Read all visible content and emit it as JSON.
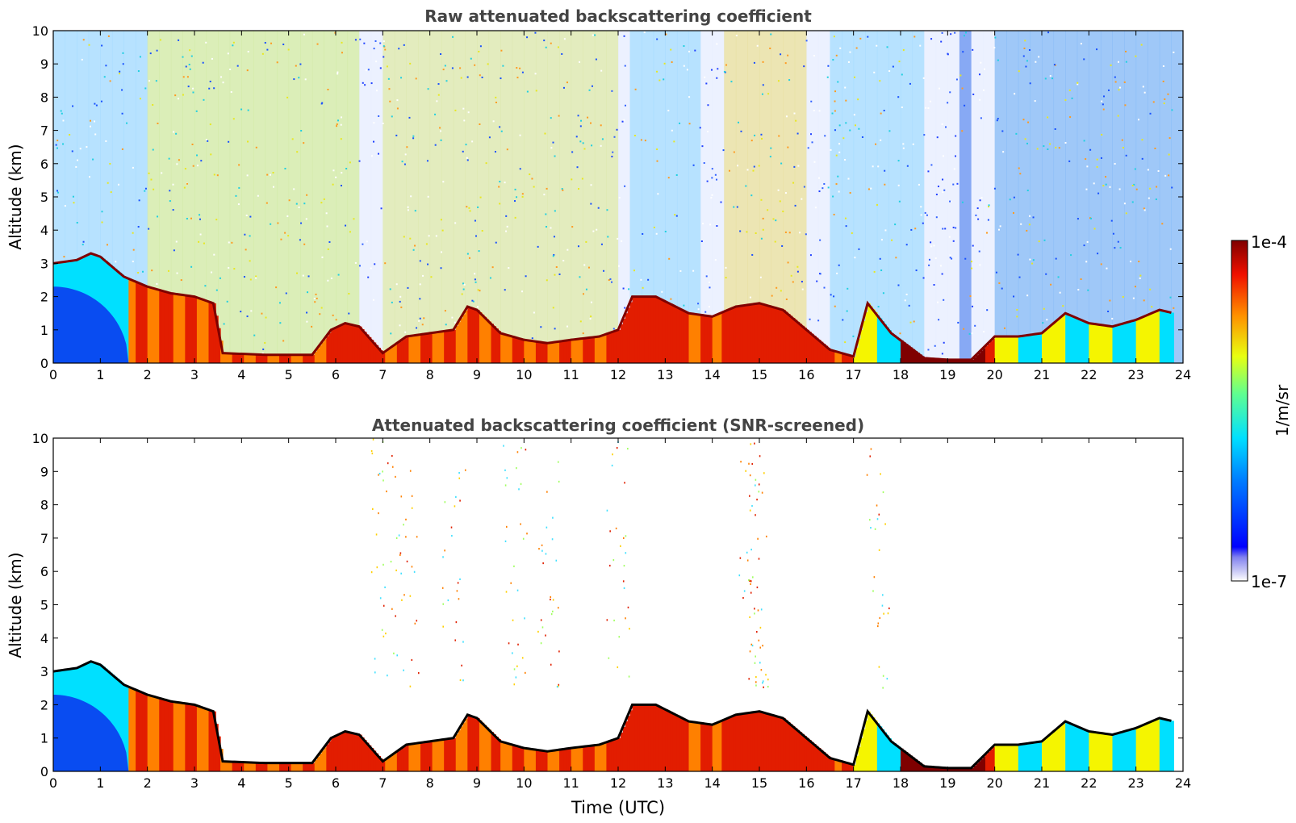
{
  "chart_data": [
    {
      "type": "heatmap",
      "title": "Raw attenuated backscattering coefficient",
      "xlabel": "",
      "ylabel": "Altitude (km)",
      "xlim": [
        0,
        24
      ],
      "ylim": [
        0,
        10
      ],
      "x_ticks": [
        "0",
        "1",
        "2",
        "3",
        "4",
        "5",
        "6",
        "7",
        "8",
        "9",
        "10",
        "11",
        "12",
        "13",
        "14",
        "15",
        "16",
        "17",
        "18",
        "19",
        "20",
        "21",
        "22",
        "23",
        "24"
      ],
      "y_ticks": [
        "0",
        "1",
        "2",
        "3",
        "4",
        "5",
        "6",
        "7",
        "8",
        "9",
        "10"
      ],
      "data_end_hour": 23.8,
      "boundary_layer_top_km": {
        "hours": [
          0,
          0.5,
          0.8,
          1.0,
          1.5,
          2.0,
          2.5,
          3.0,
          3.4,
          3.6,
          4.5,
          5.5,
          5.9,
          6.2,
          6.5,
          7.0,
          7.5,
          8.0,
          8.5,
          8.8,
          9.0,
          9.5,
          10.0,
          10.5,
          11.0,
          11.6,
          12.0,
          12.3,
          12.8,
          13.5,
          14.0,
          14.5,
          15.0,
          15.5,
          16.0,
          16.5,
          17.0,
          17.3,
          17.8,
          18.5,
          19.0,
          19.5,
          20.0,
          20.5,
          21.0,
          21.5,
          22.0,
          22.5,
          23.0,
          23.5,
          23.8
        ],
        "altitude": [
          3.0,
          3.1,
          3.3,
          3.2,
          2.6,
          2.3,
          2.1,
          2.0,
          1.8,
          0.3,
          0.25,
          0.25,
          1.0,
          1.2,
          1.1,
          0.3,
          0.8,
          0.9,
          1.0,
          1.7,
          1.6,
          0.9,
          0.7,
          0.6,
          0.7,
          0.8,
          1.0,
          2.0,
          2.0,
          1.5,
          1.4,
          1.7,
          1.8,
          1.6,
          1.0,
          0.4,
          0.2,
          1.8,
          0.9,
          0.15,
          0.1,
          0.1,
          0.8,
          0.8,
          0.9,
          1.5,
          1.2,
          1.1,
          1.3,
          1.6,
          1.5
        ]
      },
      "cirrus_bands_hours": [
        [
          6.4,
          7.0
        ],
        [
          11.8,
          12.2
        ],
        [
          13.6,
          14.2
        ],
        [
          15.8,
          16.4
        ],
        [
          18.4,
          19.2
        ],
        [
          19.5,
          19.8
        ]
      ]
    },
    {
      "type": "heatmap",
      "title": "Attenuated backscattering coefficient (SNR-screened)",
      "xlabel": "Time (UTC)",
      "ylabel": "Altitude (km)",
      "xlim": [
        0,
        24
      ],
      "ylim": [
        0,
        10
      ],
      "x_ticks": [
        "0",
        "1",
        "2",
        "3",
        "4",
        "5",
        "6",
        "7",
        "8",
        "9",
        "10",
        "11",
        "12",
        "13",
        "14",
        "15",
        "16",
        "17",
        "18",
        "19",
        "20",
        "21",
        "22",
        "23",
        "24"
      ],
      "y_ticks": [
        "0",
        "1",
        "2",
        "3",
        "4",
        "5",
        "6",
        "7",
        "8",
        "9",
        "10"
      ],
      "data_end_hour": 23.8
    }
  ],
  "colorbar": {
    "label": "1/m/sr",
    "max_label": "1e-4",
    "min_label": "1e-7",
    "colormap": "jet",
    "scale": "log",
    "range": [
      1e-07,
      0.0001
    ]
  },
  "colors": {
    "dark_red": "#7f0000",
    "red": "#e21d00",
    "orange": "#ff8000",
    "yellow": "#f5f500",
    "cyan": "#00e0ff",
    "blue": "#0a3cf0",
    "dark_blue": "#00008f",
    "title_color": "#444444"
  }
}
